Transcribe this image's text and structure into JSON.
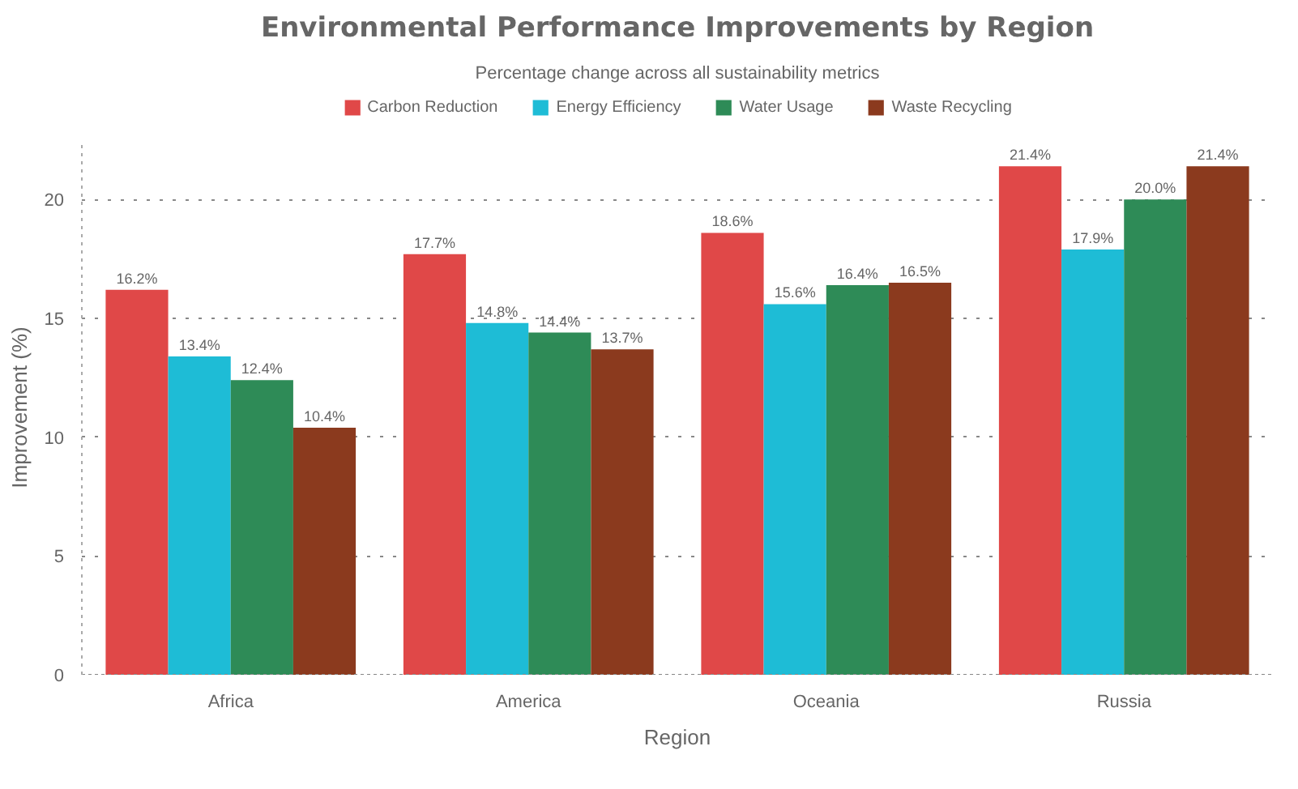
{
  "chart_data": {
    "type": "bar",
    "title": "Environmental Performance Improvements by Region",
    "subtitle": "Percentage change across all sustainability metrics",
    "xlabel": "Region",
    "ylabel": "Improvement (%)",
    "categories": [
      "Africa",
      "America",
      "Oceania",
      "Russia"
    ],
    "series": [
      {
        "name": "Carbon Reduction",
        "color": "#e04848",
        "values": [
          16.2,
          17.7,
          18.6,
          21.4
        ],
        "value_labels": [
          "16.2%",
          "17.7%",
          "18.6%",
          "21.4%"
        ]
      },
      {
        "name": "Energy Efficiency",
        "color": "#1ebcd6",
        "values": [
          13.4,
          14.8,
          15.6,
          17.9
        ],
        "value_labels": [
          "13.4%",
          "14.8%",
          "15.6%",
          "17.9%"
        ]
      },
      {
        "name": "Water Usage",
        "color": "#2e8b57",
        "values": [
          12.4,
          14.4,
          16.4,
          20.0
        ],
        "value_labels": [
          "12.4%",
          "14.4%",
          "16.4%",
          "20.0%"
        ]
      },
      {
        "name": "Waste Recycling",
        "color": "#8b3a1e",
        "values": [
          10.4,
          13.7,
          16.5,
          21.4
        ],
        "value_labels": [
          "10.4%",
          "13.7%",
          "16.5%",
          "21.4%"
        ]
      }
    ],
    "ylim": [
      0,
      22.5
    ],
    "yticks": [
      0,
      5,
      10,
      15,
      20
    ],
    "grid": "y",
    "legend": "top"
  }
}
